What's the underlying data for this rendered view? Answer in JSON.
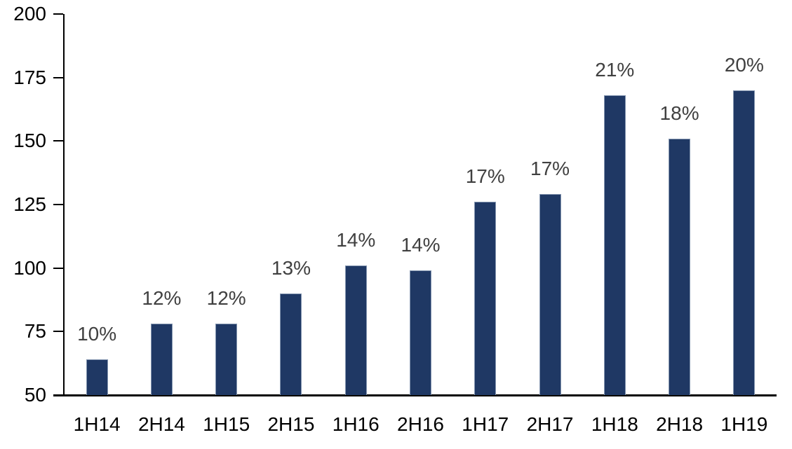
{
  "chart_data": {
    "type": "bar",
    "categories": [
      "1H14",
      "2H14",
      "1H15",
      "2H15",
      "1H16",
      "2H16",
      "1H17",
      "2H17",
      "1H18",
      "2H18",
      "1H19"
    ],
    "values": [
      64,
      78,
      78,
      90,
      101,
      99,
      126,
      129,
      168,
      151,
      170
    ],
    "data_labels": [
      "10%",
      "12%",
      "12%",
      "13%",
      "14%",
      "14%",
      "17%",
      "17%",
      "21%",
      "18%",
      "20%"
    ],
    "yticks": [
      50,
      75,
      100,
      125,
      150,
      175,
      200
    ],
    "ylim": [
      50,
      200
    ],
    "xlabel": "",
    "ylabel": "",
    "grid": false,
    "legend": "none",
    "colors": {
      "bar_fill": "#1F3864",
      "bar_border": "#8496B0",
      "data_label": "#404040",
      "axis_label": "#000000",
      "axis_line": "#000000",
      "background": "#FFFFFF"
    }
  }
}
